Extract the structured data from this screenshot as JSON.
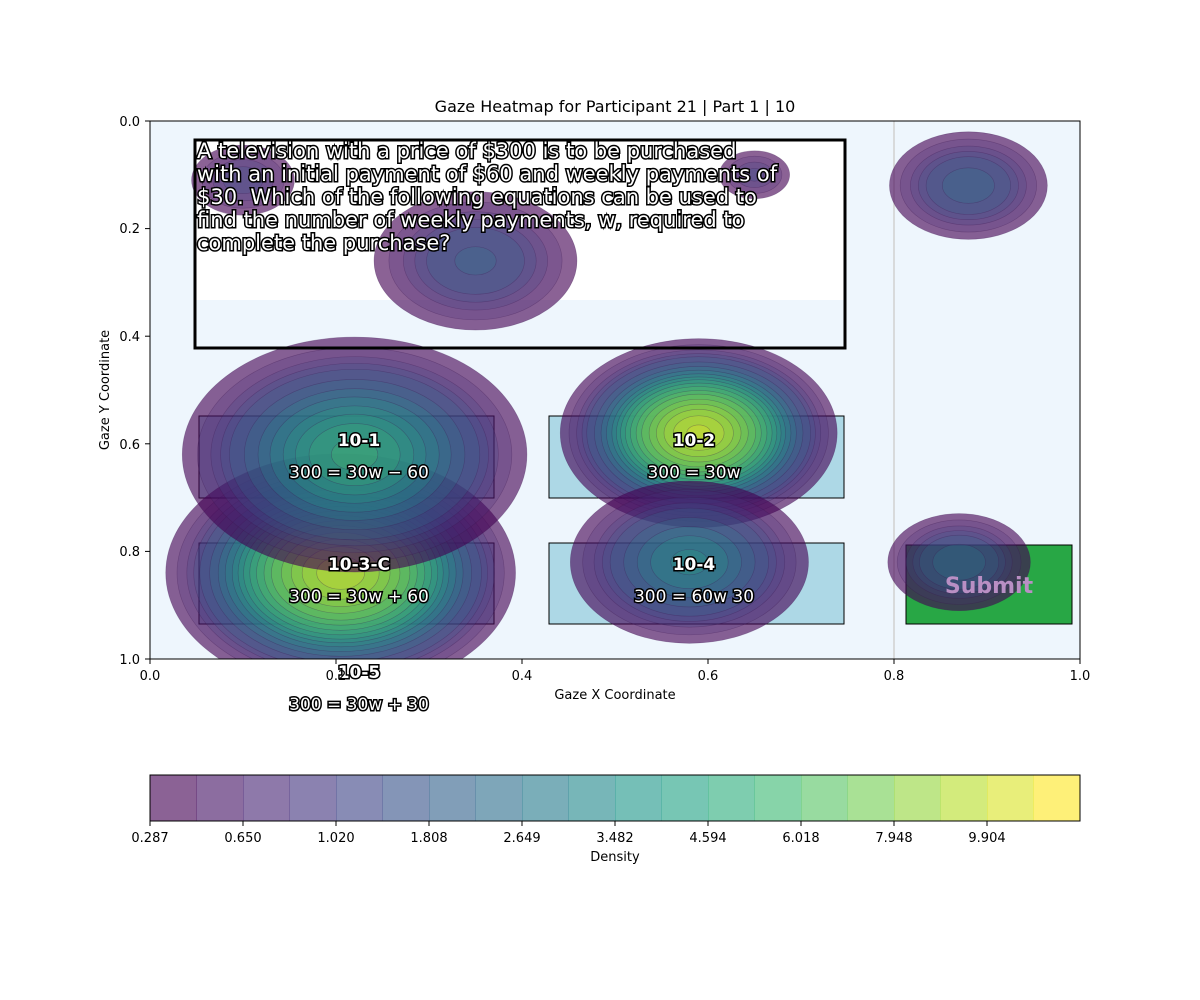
{
  "chart_data": {
    "type": "heatmap",
    "title": "Gaze Heatmap for Participant 21 | Part 1 | 10",
    "xlabel": "Gaze X Coordinate",
    "ylabel": "Gaze Y Coordinate",
    "xlim": [
      0.0,
      1.0
    ],
    "ylim": [
      1.0,
      0.0
    ],
    "x_ticks": [
      "0.0",
      "0.2",
      "0.4",
      "0.6",
      "0.8",
      "1.0"
    ],
    "y_ticks": [
      "0.0",
      "0.2",
      "0.4",
      "0.6",
      "0.8",
      "1.0"
    ],
    "grid": false,
    "colorbar": {
      "label": "Density",
      "colormap": "viridis",
      "ticks": [
        "0.287",
        "0.650",
        "1.020",
        "1.808",
        "2.649",
        "3.482",
        "4.594",
        "6.018",
        "7.948",
        "9.904"
      ],
      "levels": [
        0.287,
        0.45,
        0.65,
        0.83,
        1.02,
        1.4,
        1.808,
        2.2,
        2.649,
        3.06,
        3.482,
        4.0,
        4.594,
        5.3,
        6.018,
        7.0,
        7.948,
        8.9,
        9.904,
        10.9
      ]
    },
    "density_peaks": [
      {
        "x": 0.59,
        "y": 0.58,
        "density": 11.2
      },
      {
        "x": 0.205,
        "y": 0.84,
        "density": 10.6
      },
      {
        "x": 0.22,
        "y": 0.62,
        "density": 4.2
      },
      {
        "x": 0.58,
        "y": 0.82,
        "density": 2.8
      },
      {
        "x": 0.88,
        "y": 0.12,
        "density": 1.7
      },
      {
        "x": 0.87,
        "y": 0.82,
        "density": 1.8
      },
      {
        "x": 0.35,
        "y": 0.26,
        "density": 1.5
      },
      {
        "x": 0.1,
        "y": 0.11,
        "density": 1.0
      },
      {
        "x": 0.65,
        "y": 0.1,
        "density": 0.9
      }
    ],
    "areas_of_interest": [
      {
        "id": "question",
        "text": [
          "A television with a price of $300 is to be purchased",
          "with an initial payment of $60 and weekly payments of",
          "$30. Which of the following equations can be used to",
          "find the number of weekly payments, w, required to",
          "complete the purchase?"
        ]
      },
      {
        "id": "10-1",
        "label": "10-1",
        "text": "300 = 30w − 60"
      },
      {
        "id": "10-2",
        "label": "10-2",
        "text": "300 = 30w"
      },
      {
        "id": "10-3-C",
        "label": "10-3-C",
        "text": "300 = 30w + 60"
      },
      {
        "id": "10-4",
        "label": "10-4",
        "text": "300 = 60w 30"
      },
      {
        "id": "10-5",
        "label": "10-5",
        "text": "300 = 30w + 30"
      },
      {
        "id": "submit",
        "label": "Submit"
      }
    ]
  },
  "colors": {
    "plot_background": "#eef6fd",
    "option_fill": "#add8e6",
    "submit_fill": "#28a745",
    "question_fill": "#ffffff"
  }
}
